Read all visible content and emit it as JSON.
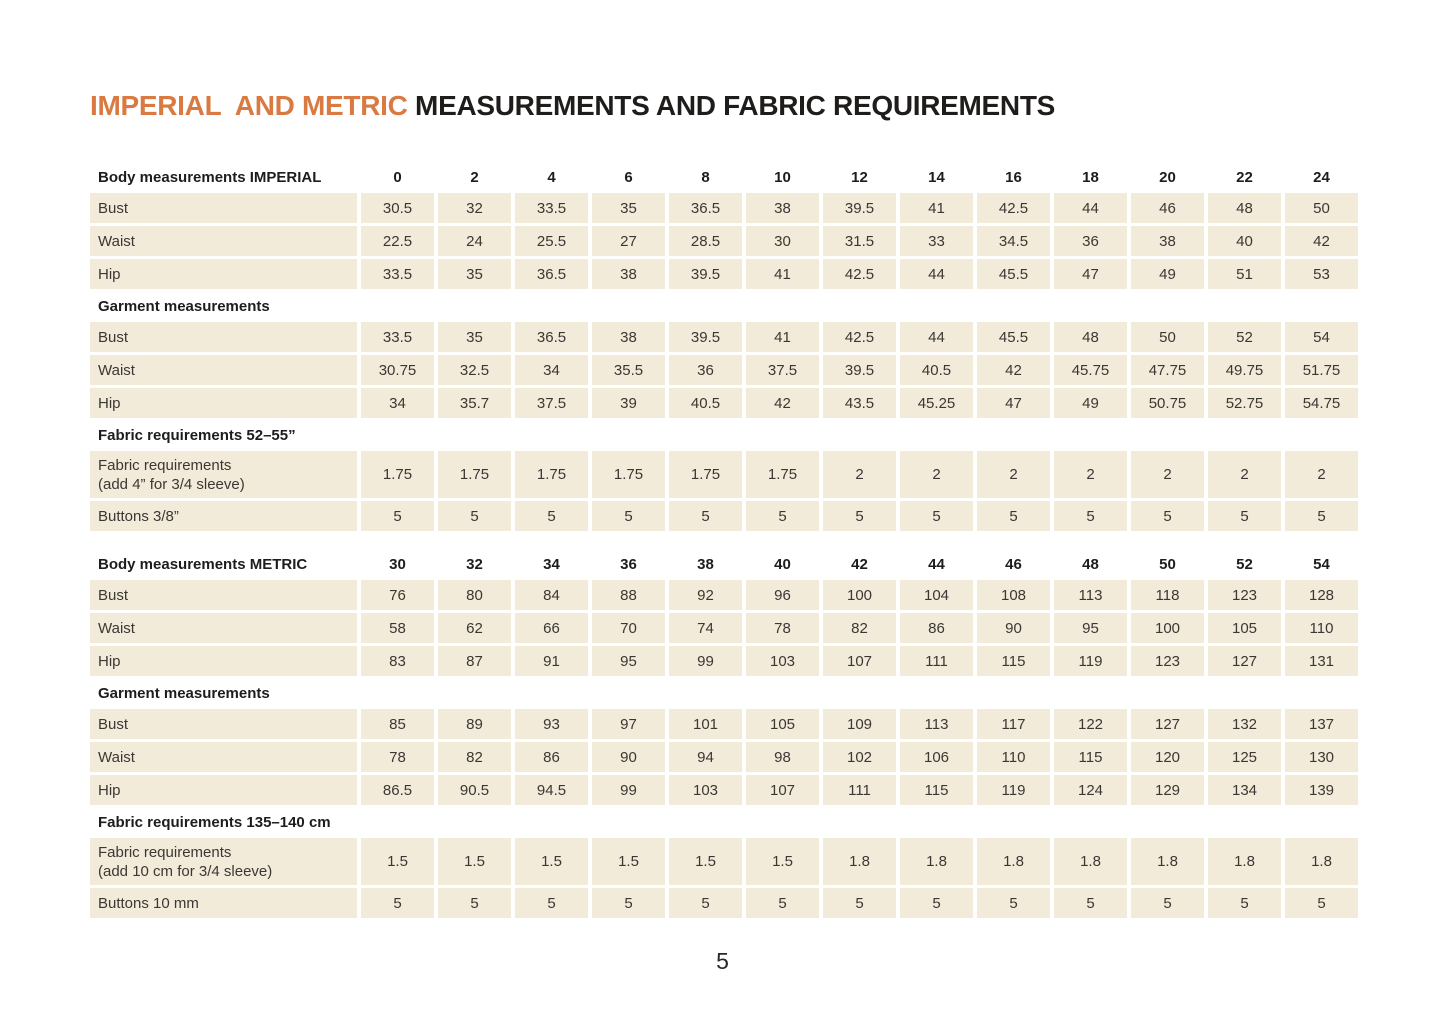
{
  "title": {
    "accent": "IMPERIAL  AND METRIC",
    "main": "MEASUREMENTS AND FABRIC REQUIREMENTS"
  },
  "colors": {
    "accent_orange": "#d97a43",
    "cell_beige": "#f2ebda",
    "heading_black": "#1f1d1b"
  },
  "footer": {
    "page_number": "5"
  },
  "table": {
    "sections": [
      {
        "header": "Body measurements IMPERIAL",
        "sizes": [
          "0",
          "2",
          "4",
          "6",
          "8",
          "10",
          "12",
          "14",
          "16",
          "18",
          "20",
          "22",
          "24"
        ],
        "rows": [
          {
            "label": "Bust",
            "values": [
              "30.5",
              "32",
              "33.5",
              "35",
              "36.5",
              "38",
              "39.5",
              "41",
              "42.5",
              "44",
              "46",
              "48",
              "50"
            ]
          },
          {
            "label": "Waist",
            "values": [
              "22.5",
              "24",
              "25.5",
              "27",
              "28.5",
              "30",
              "31.5",
              "33",
              "34.5",
              "36",
              "38",
              "40",
              "42"
            ]
          },
          {
            "label": "Hip",
            "values": [
              "33.5",
              "35",
              "36.5",
              "38",
              "39.5",
              "41",
              "42.5",
              "44",
              "45.5",
              "47",
              "49",
              "51",
              "53"
            ]
          }
        ]
      },
      {
        "header": "Garment measurements",
        "rows": [
          {
            "label": "Bust",
            "values": [
              "33.5",
              "35",
              "36.5",
              "38",
              "39.5",
              "41",
              "42.5",
              "44",
              "45.5",
              "48",
              "50",
              "52",
              "54"
            ]
          },
          {
            "label": "Waist",
            "values": [
              "30.75",
              "32.5",
              "34",
              "35.5",
              "36",
              "37.5",
              "39.5",
              "40.5",
              "42",
              "45.75",
              "47.75",
              "49.75",
              "51.75"
            ]
          },
          {
            "label": "Hip",
            "values": [
              "34",
              "35.7",
              "37.5",
              "39",
              "40.5",
              "42",
              "43.5",
              "45.25",
              "47",
              "49",
              "50.75",
              "52.75",
              "54.75"
            ]
          }
        ]
      },
      {
        "header": "Fabric requirements 52–55”",
        "rows": [
          {
            "label": "Fabric requirements",
            "label2": "(add 10 cm for 3/4 sleeve)",
            "label2_imperial": "(add 4” for 3/4 sleeve)",
            "values": [
              "1.75",
              "1.75",
              "1.75",
              "1.75",
              "1.75",
              "1.75",
              "2",
              "2",
              "2",
              "2",
              "2",
              "2",
              "2"
            ]
          },
          {
            "label": "Buttons 3/8”",
            "values": [
              "5",
              "5",
              "5",
              "5",
              "5",
              "5",
              "5",
              "5",
              "5",
              "5",
              "5",
              "5",
              "5"
            ]
          }
        ]
      },
      {
        "header": "Body measurements METRIC",
        "group_start": true,
        "sizes": [
          "30",
          "32",
          "34",
          "36",
          "38",
          "40",
          "42",
          "44",
          "46",
          "48",
          "50",
          "52",
          "54"
        ],
        "rows": [
          {
            "label": "Bust",
            "values": [
              "76",
              "80",
              "84",
              "88",
              "92",
              "96",
              "100",
              "104",
              "108",
              "113",
              "118",
              "123",
              "128"
            ]
          },
          {
            "label": "Waist",
            "values": [
              "58",
              "62",
              "66",
              "70",
              "74",
              "78",
              "82",
              "86",
              "90",
              "95",
              "100",
              "105",
              "110"
            ]
          },
          {
            "label": "Hip",
            "values": [
              "83",
              "87",
              "91",
              "95",
              "99",
              "103",
              "107",
              "111",
              "115",
              "119",
              "123",
              "127",
              "131"
            ]
          }
        ]
      },
      {
        "header": "Garment measurements",
        "rows": [
          {
            "label": "Bust",
            "values": [
              "85",
              "89",
              "93",
              "97",
              "101",
              "105",
              "109",
              "113",
              "117",
              "122",
              "127",
              "132",
              "137"
            ]
          },
          {
            "label": "Waist",
            "values": [
              "78",
              "82",
              "86",
              "90",
              "94",
              "98",
              "102",
              "106",
              "110",
              "115",
              "120",
              "125",
              "130"
            ]
          },
          {
            "label": "Hip",
            "values": [
              "86.5",
              "90.5",
              "94.5",
              "99",
              "103",
              "107",
              "111",
              "115",
              "119",
              "124",
              "129",
              "134",
              "139"
            ]
          }
        ]
      },
      {
        "header": "Fabric requirements 135–140 cm",
        "rows": [
          {
            "label": "Fabric requirements",
            "label2": "(add 10 cm for 3/4 sleeve)",
            "values": [
              "1.5",
              "1.5",
              "1.5",
              "1.5",
              "1.5",
              "1.5",
              "1.8",
              "1.8",
              "1.8",
              "1.8",
              "1.8",
              "1.8",
              "1.8"
            ]
          },
          {
            "label": "Buttons 10 mm",
            "values": [
              "5",
              "5",
              "5",
              "5",
              "5",
              "5",
              "5",
              "5",
              "5",
              "5",
              "5",
              "5",
              "5"
            ]
          }
        ]
      }
    ]
  }
}
